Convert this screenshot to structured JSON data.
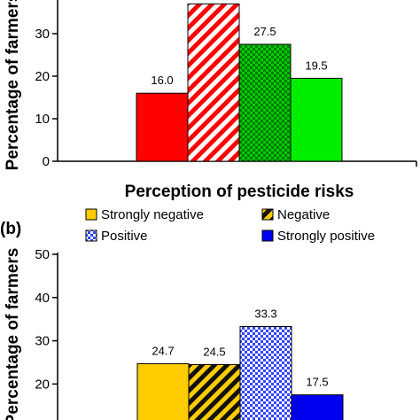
{
  "chart_data": [
    {
      "type": "bar",
      "panel": "",
      "ylabel": "Percentage of farmers",
      "xlabel": "Perception of pesticide risks",
      "yticks": [
        0,
        10,
        20,
        30
      ],
      "ylim": [
        0,
        40
      ],
      "series": [
        {
          "value": 16.0,
          "label": "16.0",
          "color": "#ff0000",
          "fill": "solid"
        },
        {
          "value": 37.0,
          "label": "",
          "color": "#ff0000",
          "fill": "diagonal-stripes"
        },
        {
          "value": 27.5,
          "label": "27.5",
          "color": "#009900",
          "fill": "checker"
        },
        {
          "value": 19.5,
          "label": "19.5",
          "color": "#00ee00",
          "fill": "solid"
        }
      ]
    },
    {
      "type": "bar",
      "panel": "(b)",
      "ylabel": "Percentage of farmers",
      "yticks": [
        20,
        30,
        40,
        50
      ],
      "ylim": [
        0,
        50
      ],
      "legend": [
        {
          "name": "Strongly negative",
          "color": "#ffcc00",
          "fill": "solid"
        },
        {
          "name": "Negative",
          "color": "#ffcc00",
          "fill": "diagonal-stripes-black"
        },
        {
          "name": "Positive",
          "color": "#3333ff",
          "fill": "checker"
        },
        {
          "name": "Strongly positive",
          "color": "#0000ee",
          "fill": "solid"
        }
      ],
      "series": [
        {
          "name": "Strongly negative",
          "value": 24.7,
          "label": "24.7"
        },
        {
          "name": "Negative",
          "value": 24.5,
          "label": "24.5"
        },
        {
          "name": "Positive",
          "value": 33.3,
          "label": "33.3"
        },
        {
          "name": "Strongly positive",
          "value": 17.5,
          "label": "17.5"
        }
      ]
    }
  ]
}
